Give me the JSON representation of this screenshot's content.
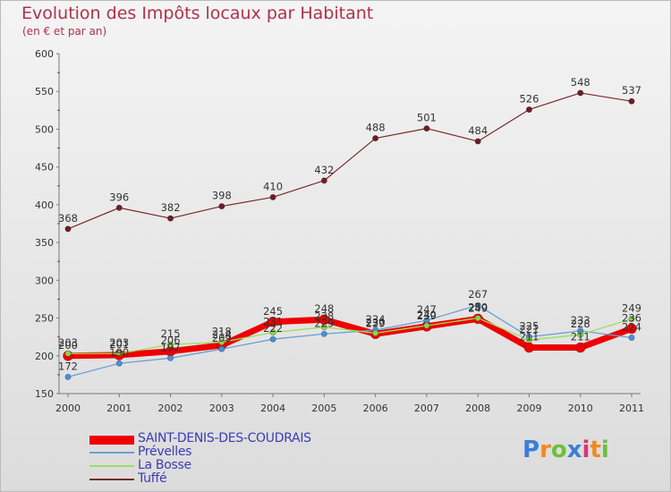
{
  "title": "Evolution des Impôts locaux par Habitant",
  "subtitle": "(en € et par an)",
  "logo": {
    "letters": [
      "P",
      "r",
      "o",
      "x",
      "i",
      "t",
      "i"
    ],
    "colors": [
      "#3a7fd6",
      "#f08a1e",
      "#6cbf3b",
      "#3a7fd6",
      "#d6357a",
      "#f08a1e",
      "#6cbf3b"
    ]
  },
  "chart_data": {
    "type": "line",
    "title": "Evolution des Impôts locaux par Habitant",
    "subtitle": "(en € et par an)",
    "xlabel": "",
    "ylabel": "",
    "ylim": [
      150,
      600
    ],
    "yticks": [
      150,
      200,
      250,
      300,
      350,
      400,
      450,
      500,
      550,
      600
    ],
    "categories": [
      "2000",
      "2001",
      "2002",
      "2003",
      "2004",
      "2005",
      "2006",
      "2007",
      "2008",
      "2009",
      "2010",
      "2011"
    ],
    "grid": false,
    "legend_position": "bottom-left",
    "series": [
      {
        "name": "SAINT-DENIS-DES-COUDRAIS",
        "color": "#ee0000",
        "marker": "#ee0000",
        "values": [
          200,
          201,
          206,
          214,
          245,
          248,
          229,
          239,
          249,
          211,
          211,
          236
        ],
        "labels": [
          "200",
          "201",
          "206",
          "214",
          "245",
          "248",
          "229",
          "239",
          "249",
          "211",
          "211",
          "236"
        ]
      },
      {
        "name": "Prévelles",
        "color": "#6a9fd4",
        "marker": "#4a8fd8",
        "values": [
          172,
          190,
          197,
          209,
          222,
          229,
          234,
          247,
          267,
          225,
          233,
          224
        ],
        "labels": [
          "172",
          "190",
          "197",
          "209",
          "222",
          "229",
          "234",
          "247",
          "267",
          "225",
          "233",
          "224"
        ]
      },
      {
        "name": "La Bosse",
        "color": "#99e060",
        "marker": "#8ad44a",
        "values": [
          203,
          203,
          215,
          218,
          231,
          238,
          230,
          240,
          250,
          221,
          228,
          249
        ],
        "labels": [
          "203",
          "203",
          "215",
          "218",
          "231",
          "238",
          "230",
          "240",
          "250",
          "221",
          "228",
          "249"
        ]
      },
      {
        "name": "Tuffé",
        "color": "#7a2a2a",
        "marker": "#6e1e28",
        "values": [
          368,
          396,
          382,
          398,
          410,
          432,
          488,
          501,
          484,
          526,
          548,
          537
        ],
        "labels": [
          "368",
          "396",
          "382",
          "398",
          "410",
          "432",
          "488",
          "501",
          "484",
          "526",
          "548",
          "537"
        ]
      }
    ]
  }
}
